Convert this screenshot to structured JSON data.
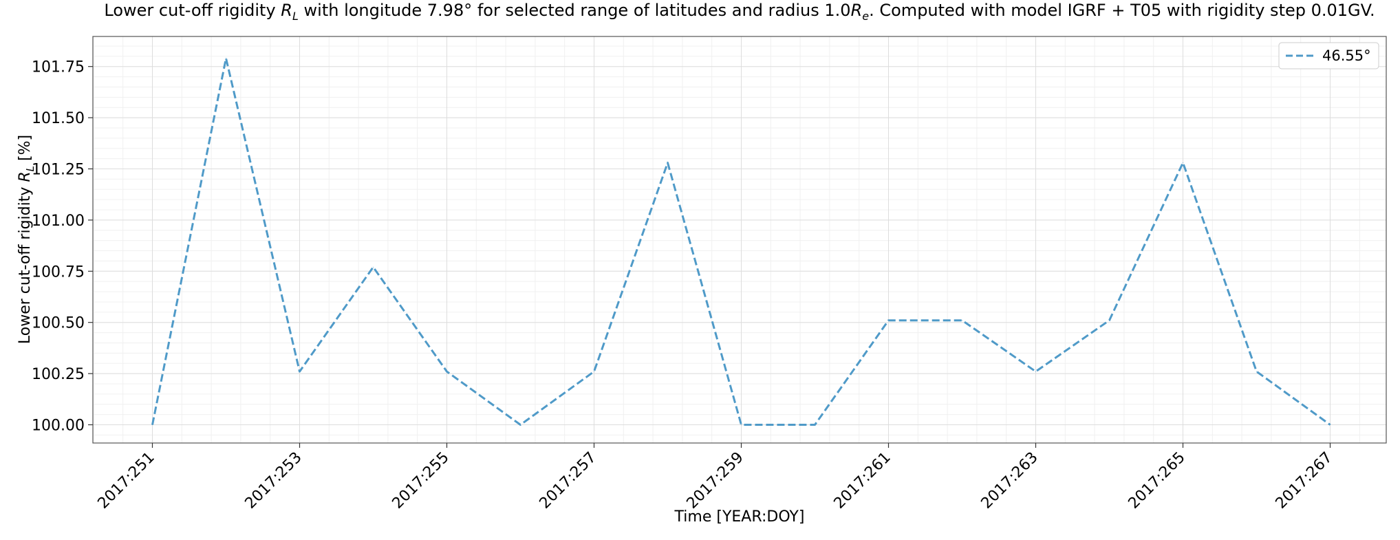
{
  "chart_data": {
    "type": "line",
    "title_parts": {
      "t1": "Lower cut-off rigidity ",
      "t2": "R",
      "t3": "L",
      "t4": " with longitude 7.98° for selected range of latitudes and radius 1.0",
      "t5": "R",
      "t6": "e",
      "t7": ". Computed with model IGRF + T05 with rigidity step 0.01GV."
    },
    "xlabel": "Time [YEAR:DOY]",
    "ylabel": "Lower cut-off rigidity R_L [%]",
    "ylabel_parts": {
      "pre": "Lower cut-off rigidity ",
      "r": "R",
      "sub": "L",
      "post": " [%]"
    },
    "x": [
      "2017:251",
      "2017:252",
      "2017:253",
      "2017:254",
      "2017:255",
      "2017:256",
      "2017:257",
      "2017:258",
      "2017:259",
      "2017:260",
      "2017:261",
      "2017:262",
      "2017:263",
      "2017:264",
      "2017:265",
      "2017:266",
      "2017:267"
    ],
    "x_tick_labels": [
      "2017:251",
      "2017:253",
      "2017:255",
      "2017:257",
      "2017:259",
      "2017:261",
      "2017:263",
      "2017:265",
      "2017:267"
    ],
    "y_tick_labels": [
      "100.00",
      "100.25",
      "100.50",
      "100.75",
      "101.00",
      "101.25",
      "101.50",
      "101.75"
    ],
    "ylim": [
      99.91,
      101.88
    ],
    "series": [
      {
        "name": "46.55°",
        "color": "#4f9ac8",
        "style": "dashed",
        "values": [
          100.0,
          101.79,
          100.26,
          100.77,
          100.26,
          100.0,
          100.26,
          101.28,
          100.0,
          100.0,
          100.51,
          100.51,
          100.26,
          100.51,
          101.28,
          100.26,
          100.0
        ]
      }
    ],
    "legend_position": "top-right",
    "grid": true
  }
}
